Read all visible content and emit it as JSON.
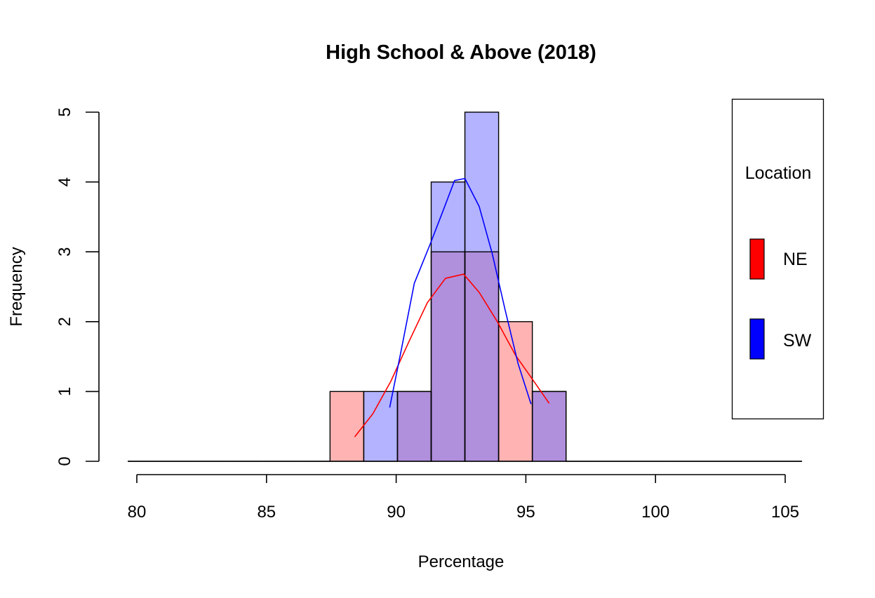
{
  "chart_data": {
    "type": "bar",
    "title": "High School & Above (2018)",
    "xlabel": "Percentage",
    "ylabel": "Frequency",
    "xlim": [
      80,
      105
    ],
    "ylim": [
      0,
      5
    ],
    "x_ticks": [
      "80",
      "85",
      "90",
      "95",
      "100",
      "105"
    ],
    "y_ticks": [
      "0",
      "1",
      "2",
      "3",
      "4",
      "5"
    ],
    "bin_edges": [
      79.65,
      80.95,
      82.25,
      83.55,
      84.85,
      86.15,
      87.45,
      88.75,
      90.05,
      91.35,
      92.65,
      93.95,
      95.25,
      96.55,
      97.85,
      99.15,
      100.45,
      101.75,
      103.05,
      104.35,
      105.65
    ],
    "series": [
      {
        "name": "NE",
        "fill_color": "#ffb3b3",
        "line_color": "#ff0000",
        "counts": [
          0,
          0,
          0,
          0,
          0,
          0,
          1,
          0,
          1,
          3,
          3,
          2,
          1,
          0,
          0,
          0,
          0,
          0,
          0,
          0
        ],
        "density_curve": {
          "x": [
            88.4,
            89.1,
            89.8,
            90.5,
            91.2,
            91.9,
            92.6,
            93.2,
            93.9,
            94.6,
            95.3,
            95.9
          ],
          "y": [
            0.35,
            0.68,
            1.15,
            1.72,
            2.27,
            2.62,
            2.68,
            2.42,
            2.0,
            1.52,
            1.15,
            0.83
          ]
        }
      },
      {
        "name": "SW",
        "fill_color": "#b3b3ff",
        "line_color": "#0000ff",
        "counts": [
          0,
          0,
          0,
          0,
          0,
          0,
          0,
          1,
          1,
          4,
          5,
          0,
          1,
          0,
          0,
          0,
          0,
          0,
          0,
          0
        ],
        "density_curve": {
          "x": [
            89.75,
            90.2,
            90.7,
            91.3,
            91.8,
            92.25,
            92.65,
            93.2,
            93.7,
            94.2,
            94.7,
            95.2
          ],
          "y": [
            0.77,
            1.6,
            2.55,
            3.1,
            3.58,
            4.02,
            4.05,
            3.65,
            2.98,
            2.17,
            1.4,
            0.82
          ]
        }
      }
    ],
    "overlap_color": "#b08fdd",
    "legend": {
      "title": "Location",
      "position": "right",
      "entries": [
        {
          "label": "NE",
          "color": "#ff0000"
        },
        {
          "label": "SW",
          "color": "#0000ff"
        }
      ]
    }
  }
}
